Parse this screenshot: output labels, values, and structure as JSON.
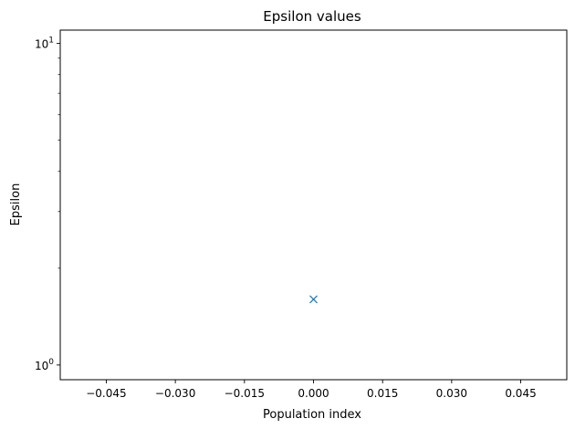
{
  "chart_data": {
    "type": "scatter",
    "title": "Epsilon values",
    "xlabel": "Population index",
    "ylabel": "Epsilon",
    "xlim": [
      -0.055,
      0.055
    ],
    "ylim": [
      0.9,
      11
    ],
    "yscale": "log",
    "grid": false,
    "x_ticks": [
      -0.045,
      -0.03,
      -0.015,
      0.0,
      0.015,
      0.03,
      0.045
    ],
    "x_tick_labels": [
      "−0.045",
      "−0.030",
      "−0.015",
      "0.000",
      "0.015",
      "0.030",
      "0.045"
    ],
    "y_major_ticks": [
      1,
      10
    ],
    "y_tick_labels": [
      {
        "base": "10",
        "exp": "0"
      },
      {
        "base": "10",
        "exp": "1"
      }
    ],
    "y_minor_ticks": [
      2,
      3,
      4,
      5,
      6,
      7,
      8,
      9
    ],
    "series": [
      {
        "marker": "x",
        "color": "#1f77b4",
        "points": [
          {
            "x": 0.0,
            "y": 1.6
          }
        ]
      }
    ]
  }
}
